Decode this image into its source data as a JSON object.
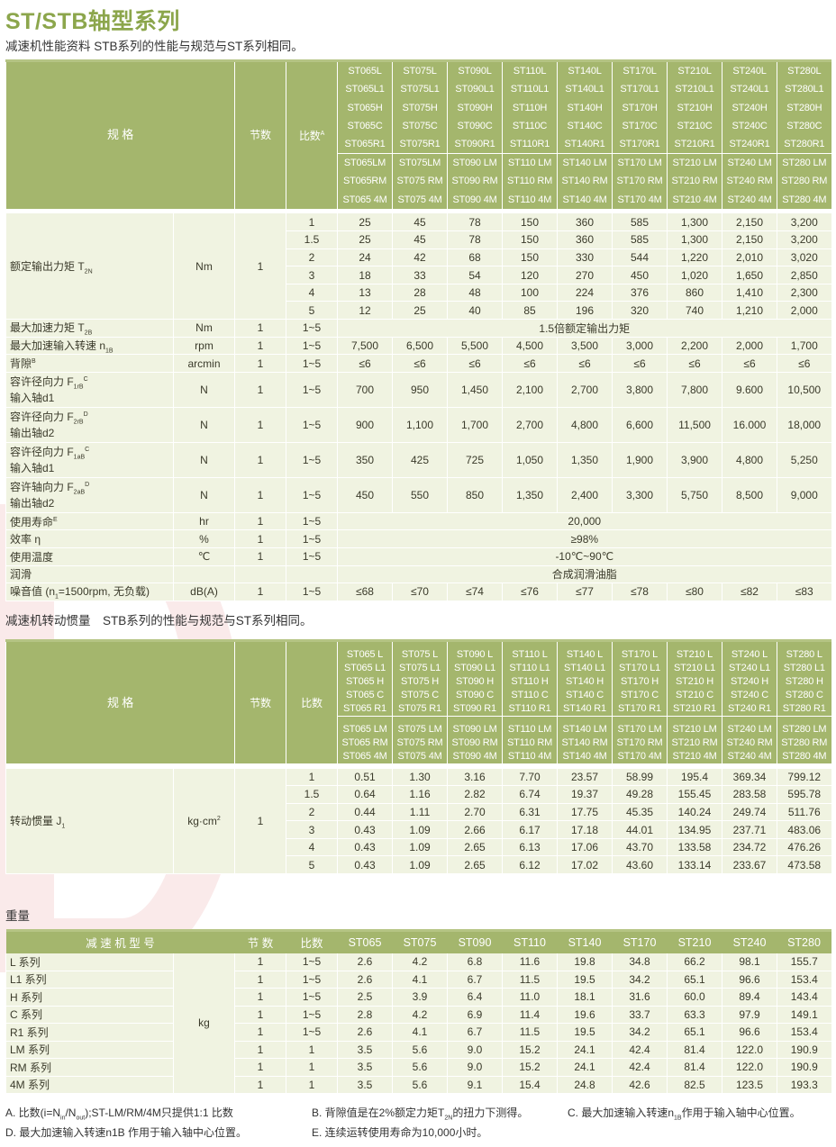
{
  "title": "ST/STB轴型系列",
  "perf_caption": "减速机性能资料 STB系列的性能与规范与ST系列相同。",
  "perf": {
    "h_spec": "规 格",
    "h_stages": "节数",
    "h_ratio": "比数",
    "h_ratio_sup": "A",
    "models_a": [
      [
        "ST065L",
        "ST065L1",
        "ST065H",
        "ST065C",
        "ST065R1"
      ],
      [
        "ST075L",
        "ST075L1",
        "ST075H",
        "ST075C",
        "ST075R1"
      ],
      [
        "ST090L",
        "ST090L1",
        "ST090H",
        "ST090C",
        "ST090R1"
      ],
      [
        "ST110L",
        "ST110L1",
        "ST110H",
        "ST110C",
        "ST110R1"
      ],
      [
        "ST140L",
        "ST140L1",
        "ST140H",
        "ST140C",
        "ST140R1"
      ],
      [
        "ST170L",
        "ST170L1",
        "ST170H",
        "ST170C",
        "ST170R1"
      ],
      [
        "ST210L",
        "ST210L1",
        "ST210H",
        "ST210C",
        "ST210R1"
      ],
      [
        "ST240L",
        "ST240L1",
        "ST240H",
        "ST240C",
        "ST240R1"
      ],
      [
        "ST280L",
        "ST280L1",
        "ST280H",
        "ST280C",
        "ST280R1"
      ]
    ],
    "models_b": [
      [
        "ST065LM",
        "ST065RM",
        "ST065 4M"
      ],
      [
        "ST075LM",
        "ST075 RM",
        "ST075 4M"
      ],
      [
        "ST090 LM",
        "ST090 RM",
        "ST090 4M"
      ],
      [
        "ST110 LM",
        "ST110 RM",
        "ST110 4M"
      ],
      [
        "ST140 LM",
        "ST140 RM",
        "ST140 4M"
      ],
      [
        "ST170 LM",
        "ST170 RM",
        "ST170 4M"
      ],
      [
        "ST210 LM",
        "ST210 RM",
        "ST210 4M"
      ],
      [
        "ST240 LM",
        "ST240 RM",
        "ST240 4M"
      ],
      [
        "ST280 LM",
        "ST280 RM",
        "ST280 4M"
      ]
    ],
    "torque": {
      "label": "额定输出力矩 T",
      "sub": "2N",
      "unit": "Nm",
      "stages": "1",
      "rows": [
        [
          "1",
          "25",
          "45",
          "78",
          "150",
          "360",
          "585",
          "1,300",
          "2,150",
          "3,200"
        ],
        [
          "1.5",
          "25",
          "45",
          "78",
          "150",
          "360",
          "585",
          "1,300",
          "2,150",
          "3,200"
        ],
        [
          "2",
          "24",
          "42",
          "68",
          "150",
          "330",
          "544",
          "1,220",
          "2,010",
          "3,020"
        ],
        [
          "3",
          "18",
          "33",
          "54",
          "120",
          "270",
          "450",
          "1,020",
          "1,650",
          "2,850"
        ],
        [
          "4",
          "13",
          "28",
          "48",
          "100",
          "224",
          "376",
          "860",
          "1,410",
          "2,300"
        ],
        [
          "5",
          "12",
          "25",
          "40",
          "85",
          "196",
          "320",
          "740",
          "1,210",
          "2,000"
        ]
      ]
    },
    "rows": [
      {
        "label": "最大加速力矩 T",
        "sub": "2B",
        "unit": "Nm",
        "stages": "1",
        "ratio": "1~5",
        "span": "1.5倍额定输出力矩"
      },
      {
        "label": "最大加速输入转速 n",
        "sub": "1B",
        "unit": "rpm",
        "stages": "1",
        "ratio": "1~5",
        "values": [
          "7,500",
          "6,500",
          "5,500",
          "4,500",
          "3,500",
          "3,000",
          "2,200",
          "2,000",
          "1,700"
        ]
      },
      {
        "label": "背隙",
        "sup": "B",
        "unit": "arcmin",
        "stages": "1",
        "ratio": "1~5",
        "values": [
          "≤6",
          "≤6",
          "≤6",
          "≤6",
          "≤6",
          "≤6",
          "≤6",
          "≤6",
          "≤6"
        ]
      },
      {
        "label": "容许径向力 F",
        "sub": "1rB",
        "sup": "C",
        "label2": "输入轴d1",
        "unit": "N",
        "stages": "1",
        "ratio": "1~5",
        "values": [
          "700",
          "950",
          "1,450",
          "2,100",
          "2,700",
          "3,800",
          "7,800",
          "9.600",
          "10,500"
        ]
      },
      {
        "label": "容许径向力 F",
        "sub": "2rB",
        "sup": "D",
        "label2": "输出轴d2",
        "unit": "N",
        "stages": "1",
        "ratio": "1~5",
        "values": [
          "900",
          "1,100",
          "1,700",
          "2,700",
          "4,800",
          "6,600",
          "11,500",
          "16.000",
          "18,000"
        ]
      },
      {
        "label": "容许径向力 F",
        "sub": "1aB",
        "sup": "C",
        "label2": "输入轴d1",
        "unit": "N",
        "stages": "1",
        "ratio": "1~5",
        "values": [
          "350",
          "425",
          "725",
          "1,050",
          "1,350",
          "1,900",
          "3,900",
          "4,800",
          "5,250"
        ]
      },
      {
        "label": "容许轴向力 F",
        "sub": "2aB",
        "sup": "D",
        "label2": "输出轴d2",
        "unit": "N",
        "stages": "1",
        "ratio": "1~5",
        "values": [
          "450",
          "550",
          "850",
          "1,350",
          "2,400",
          "3,300",
          "5,750",
          "8,500",
          "9,000"
        ]
      },
      {
        "label": "使用寿命",
        "sup": "E",
        "unit": "hr",
        "stages": "1",
        "ratio": "1~5",
        "span": "20,000"
      },
      {
        "label": "效率 η",
        "unit": "%",
        "stages": "1",
        "ratio": "1~5",
        "span": "≥98%"
      },
      {
        "label": "使用温度",
        "unit": "℃",
        "stages": "1",
        "ratio": "1~5",
        "span": "-10℃~90℃"
      },
      {
        "label": "润滑",
        "unit": "",
        "stages": "",
        "ratio": "",
        "span": "合成润滑油脂"
      },
      {
        "label": "噪音值 (n",
        "sub": "1",
        "label_tail": "=1500rpm, 无负载)",
        "unit": "dB(A)",
        "stages": "1",
        "ratio": "1~5",
        "values": [
          "≤68",
          "≤70",
          "≤74",
          "≤76",
          "≤77",
          "≤78",
          "≤80",
          "≤82",
          "≤83"
        ]
      }
    ]
  },
  "inertia_caption": "减速机转动惯量　STB系列的性能与规范与ST系列相同。",
  "inertia": {
    "h_spec": "规 格",
    "h_stages": "节数",
    "h_ratio": "比数",
    "models_a": [
      [
        "ST065 L",
        "ST065 L1",
        "ST065 H",
        "ST065 C",
        "ST065 R1"
      ],
      [
        "ST075 L",
        "ST075 L1",
        "ST075 H",
        "ST075 C",
        "ST075 R1"
      ],
      [
        "ST090 L",
        "ST090 L1",
        "ST090 H",
        "ST090 C",
        "ST090 R1"
      ],
      [
        "ST110 L",
        "ST110 L1",
        "ST110 H",
        "ST110 C",
        "ST110 R1"
      ],
      [
        "ST140 L",
        "ST140 L1",
        "ST140 H",
        "ST140 C",
        "ST140 R1"
      ],
      [
        "ST170 L",
        "ST170 L1",
        "ST170 H",
        "ST170 C",
        "ST170 R1"
      ],
      [
        "ST210 L",
        "ST210 L1",
        "ST210 H",
        "ST210 C",
        "ST210 R1"
      ],
      [
        "ST240 L",
        "ST240 L1",
        "ST240 H",
        "ST240 C",
        "ST240 R1"
      ],
      [
        "ST280 L",
        "ST280 L1",
        "ST280 H",
        "ST280 C",
        "ST280 R1"
      ]
    ],
    "models_b": [
      [
        "ST065 LM",
        "ST065 RM",
        "ST065 4M"
      ],
      [
        "ST075 LM",
        "ST075 RM",
        "ST075 4M"
      ],
      [
        "ST090 LM",
        "ST090 RM",
        "ST090 4M"
      ],
      [
        "ST110 LM",
        "ST110 RM",
        "ST110 4M"
      ],
      [
        "ST140 LM",
        "ST140 RM",
        "ST140 4M"
      ],
      [
        "ST170 LM",
        "ST170 RM",
        "ST170 4M"
      ],
      [
        "ST210 LM",
        "ST210 RM",
        "ST210 4M"
      ],
      [
        "ST240 LM",
        "ST240 RM",
        "ST240 4M"
      ],
      [
        "ST280 LM",
        "ST280 RM",
        "ST280 4M"
      ]
    ],
    "label": "转动惯量 J",
    "sub": "1",
    "unit": "kg·cm",
    "unit_sup": "2",
    "stages": "1",
    "rows": [
      [
        "1",
        "0.51",
        "1.30",
        "3.16",
        "7.70",
        "23.57",
        "58.99",
        "195.4",
        "369.34",
        "799.12"
      ],
      [
        "1.5",
        "0.64",
        "1.16",
        "2.82",
        "6.74",
        "19.37",
        "49.28",
        "155.45",
        "283.58",
        "595.78"
      ],
      [
        "2",
        "0.44",
        "1.11",
        "2.70",
        "6.31",
        "17.75",
        "45.35",
        "140.24",
        "249.74",
        "511.76"
      ],
      [
        "3",
        "0.43",
        "1.09",
        "2.66",
        "6.17",
        "17.18",
        "44.01",
        "134.95",
        "237.71",
        "483.06"
      ],
      [
        "4",
        "0.43",
        "1.09",
        "2.65",
        "6.13",
        "17.06",
        "43.70",
        "133.58",
        "234.72",
        "476.26"
      ],
      [
        "5",
        "0.43",
        "1.09",
        "2.65",
        "6.12",
        "17.02",
        "43.60",
        "133.14",
        "233.67",
        "473.58"
      ]
    ]
  },
  "weight_caption": "重量",
  "weight": {
    "headers": [
      "减 速 机 型 号",
      "节 数",
      "比数",
      "ST065",
      "ST075",
      "ST090",
      "ST110",
      "ST140",
      "ST170",
      "ST210",
      "ST240",
      "ST280"
    ],
    "unit": "kg",
    "rows": [
      [
        "L 系列",
        "1",
        "1~5",
        "2.6",
        "4.2",
        "6.8",
        "11.6",
        "19.8",
        "34.8",
        "66.2",
        "98.1",
        "155.7"
      ],
      [
        "L1 系列",
        "1",
        "1~5",
        "2.6",
        "4.1",
        "6.7",
        "11.5",
        "19.5",
        "34.2",
        "65.1",
        "96.6",
        "153.4"
      ],
      [
        "H 系列",
        "1",
        "1~5",
        "2.5",
        "3.9",
        "6.4",
        "11.0",
        "18.1",
        "31.6",
        "60.0",
        "89.4",
        "143.4"
      ],
      [
        "C 系列",
        "1",
        "1~5",
        "2.8",
        "4.2",
        "6.9",
        "11.4",
        "19.6",
        "33.7",
        "63.3",
        "97.9",
        "149.1"
      ],
      [
        "R1 系列",
        "1",
        "1~5",
        "2.6",
        "4.1",
        "6.7",
        "11.5",
        "19.5",
        "34.2",
        "65.1",
        "96.6",
        "153.4"
      ],
      [
        "LM 系列",
        "1",
        "1",
        "3.5",
        "5.6",
        "9.0",
        "15.2",
        "24.1",
        "42.4",
        "81.4",
        "122.0",
        "190.9"
      ],
      [
        "RM 系列",
        "1",
        "1",
        "3.5",
        "5.6",
        "9.0",
        "15.2",
        "24.1",
        "42.4",
        "81.4",
        "122.0",
        "190.9"
      ],
      [
        "4M 系列",
        "1",
        "1",
        "3.5",
        "5.6",
        "9.1",
        "15.4",
        "24.8",
        "42.6",
        "82.5",
        "123.5",
        "193.3"
      ]
    ]
  },
  "notes": {
    "a": "A. 比数(i=N_in/N_out);ST-LM/RM/4M只提供1:1 比数",
    "b": "B. 背隙值是在2%额定力矩T_2N的扭力下测得。",
    "c": "C. 最大加速输入转速n_1B作用于输入轴中心位置。",
    "d": "D. 最大加速输入转速n1B 作用于输入轴中心位置。",
    "e": "E. 连续运转使用寿命为10,000小时。"
  },
  "colors": {
    "title": "#8ca64c",
    "header_bg": "#a4b66d",
    "body_bg": "#f0f3e1"
  }
}
